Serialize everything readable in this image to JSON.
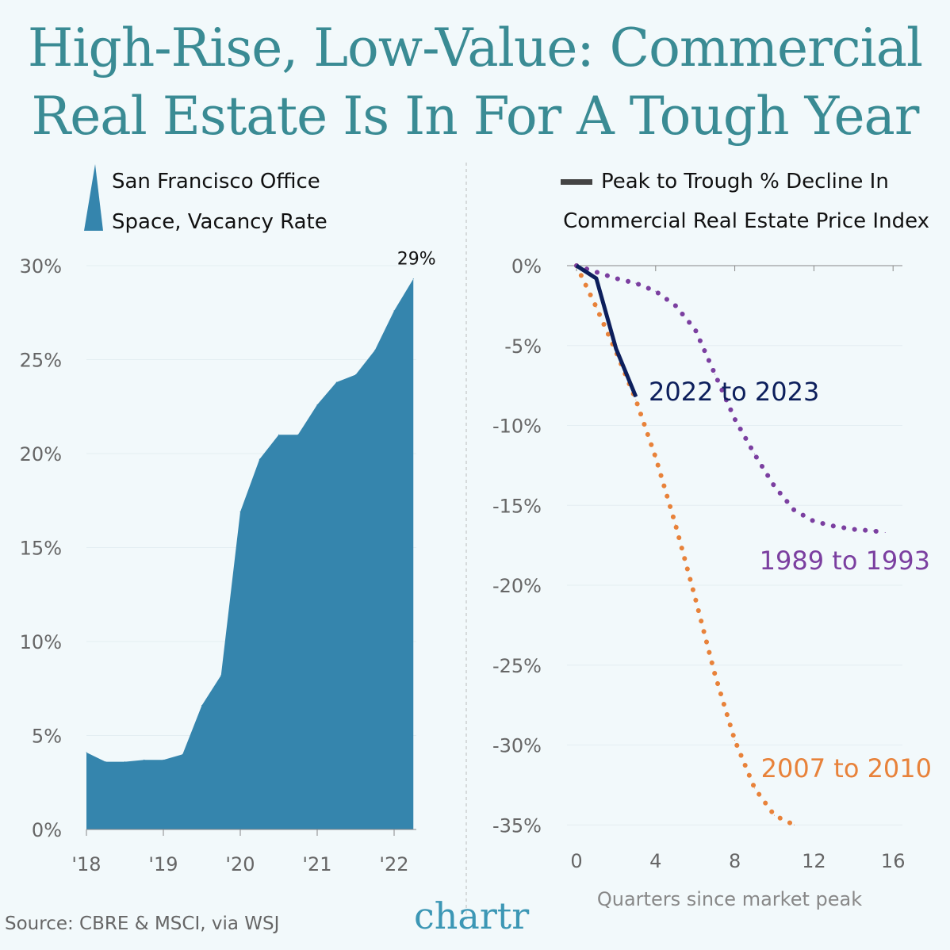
{
  "title": [
    "High-Rise, Low-Value: Commercial",
    "Real Estate Is In For A Tough Year"
  ],
  "source": "Source: CBRE & MSCI, via WSJ",
  "logo": "chartr",
  "colors": {
    "title": "#3a8b94",
    "area": "#3585ad",
    "s2022": "#0d1f5c",
    "s1989": "#7b3fa0",
    "s2007": "#e8823a",
    "background": "#f2f9fb"
  },
  "chart_data": [
    {
      "type": "area",
      "legend": [
        "San Francisco Office",
        "Space, Vacancy Rate"
      ],
      "x_tick_labels": [
        "'18",
        "'19",
        "'20",
        "'21",
        "'22"
      ],
      "y_tick_labels": [
        "0%",
        "5%",
        "10%",
        "15%",
        "20%",
        "25%",
        "30%"
      ],
      "ylim": [
        0,
        30
      ],
      "x": [
        "2018 Q1",
        "2018 Q2",
        "2018 Q3",
        "2018 Q4",
        "2019 Q1",
        "2019 Q2",
        "2019 Q3",
        "2019 Q4",
        "2020 Q1",
        "2020 Q2",
        "2020 Q3",
        "2020 Q4",
        "2021 Q1",
        "2021 Q2",
        "2021 Q3",
        "2021 Q4",
        "2022 Q1",
        "2022 Q2"
      ],
      "values": [
        4.1,
        3.6,
        3.6,
        3.7,
        3.7,
        4.0,
        6.6,
        8.2,
        16.9,
        19.7,
        21.0,
        21.0,
        22.6,
        23.8,
        24.2,
        25.5,
        27.6,
        29.3
      ],
      "end_label": "29%",
      "grid": true
    },
    {
      "type": "line",
      "legend": [
        "Peak to Trough % Decline In",
        "Commercial Real Estate Price Index"
      ],
      "xlabel": "Quarters since market peak",
      "x_tick_labels": [
        "0",
        "4",
        "8",
        "12",
        "16"
      ],
      "y_tick_labels": [
        "0%",
        "-5%",
        "-10%",
        "-15%",
        "-20%",
        "-25%",
        "-30%",
        "-35%"
      ],
      "xlim": [
        0,
        16
      ],
      "ylim": [
        -35,
        0
      ],
      "grid": true,
      "series": [
        {
          "name": "2022 to 2023",
          "style": "solid",
          "x": [
            0,
            1,
            2,
            3
          ],
          "values": [
            0,
            -0.8,
            -5.2,
            -8.2
          ]
        },
        {
          "name": "1989 to 1993",
          "style": "dotted",
          "x": [
            0,
            1,
            2,
            3,
            4,
            5,
            6,
            7,
            8,
            9,
            10,
            11,
            12,
            13,
            14,
            15,
            15.6
          ],
          "values": [
            0,
            -0.4,
            -0.8,
            -1.1,
            -1.6,
            -2.5,
            -4.0,
            -6.8,
            -9.6,
            -11.8,
            -13.8,
            -15.3,
            -16.0,
            -16.3,
            -16.5,
            -16.6,
            -16.7
          ]
        },
        {
          "name": "2007 to 2010",
          "style": "dotted",
          "x": [
            0,
            1,
            2,
            3,
            4,
            5,
            6,
            7,
            8,
            9,
            10,
            11
          ],
          "values": [
            0,
            -2.6,
            -5.4,
            -8.4,
            -12.0,
            -16.2,
            -20.8,
            -25.6,
            -29.7,
            -32.7,
            -34.4,
            -35.0
          ]
        }
      ]
    }
  ]
}
